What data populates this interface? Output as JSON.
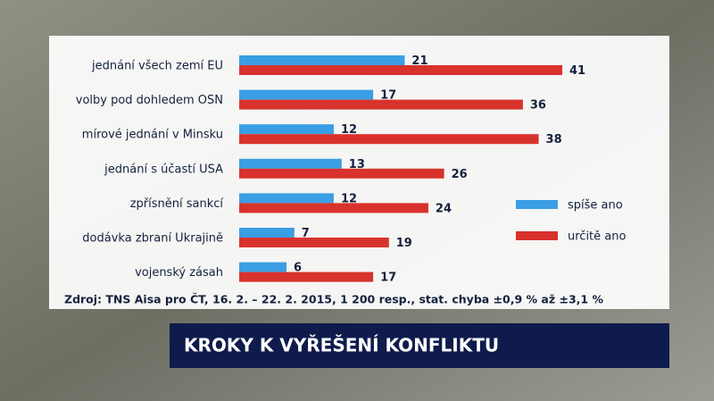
{
  "chart_data": {
    "type": "bar",
    "orientation": "horizontal",
    "title": "KROKY K VYŘEŠENÍ KONFLIKTU",
    "source": "Zdroj: TNS Aisa pro ČT, 16. 2. – 22. 2. 2015, 1 200 resp., stat. chyba ±0,9 % až ±3,1 %",
    "categories": [
      "jednání všech zemí EU",
      "volby pod dohledem OSN",
      "mírové jednání v Minsku",
      "jednání s účastí USA",
      "zpřísnění sankcí",
      "dodávka zbraní Ukrajině",
      "vojenský zásah"
    ],
    "series": [
      {
        "name": "spíše ano",
        "color": "#3a9ee4",
        "values": [
          21,
          17,
          12,
          13,
          12,
          7,
          6
        ]
      },
      {
        "name": "určitě ano",
        "color": "#d8322c",
        "values": [
          41,
          36,
          38,
          26,
          24,
          19,
          17
        ]
      }
    ]
  }
}
